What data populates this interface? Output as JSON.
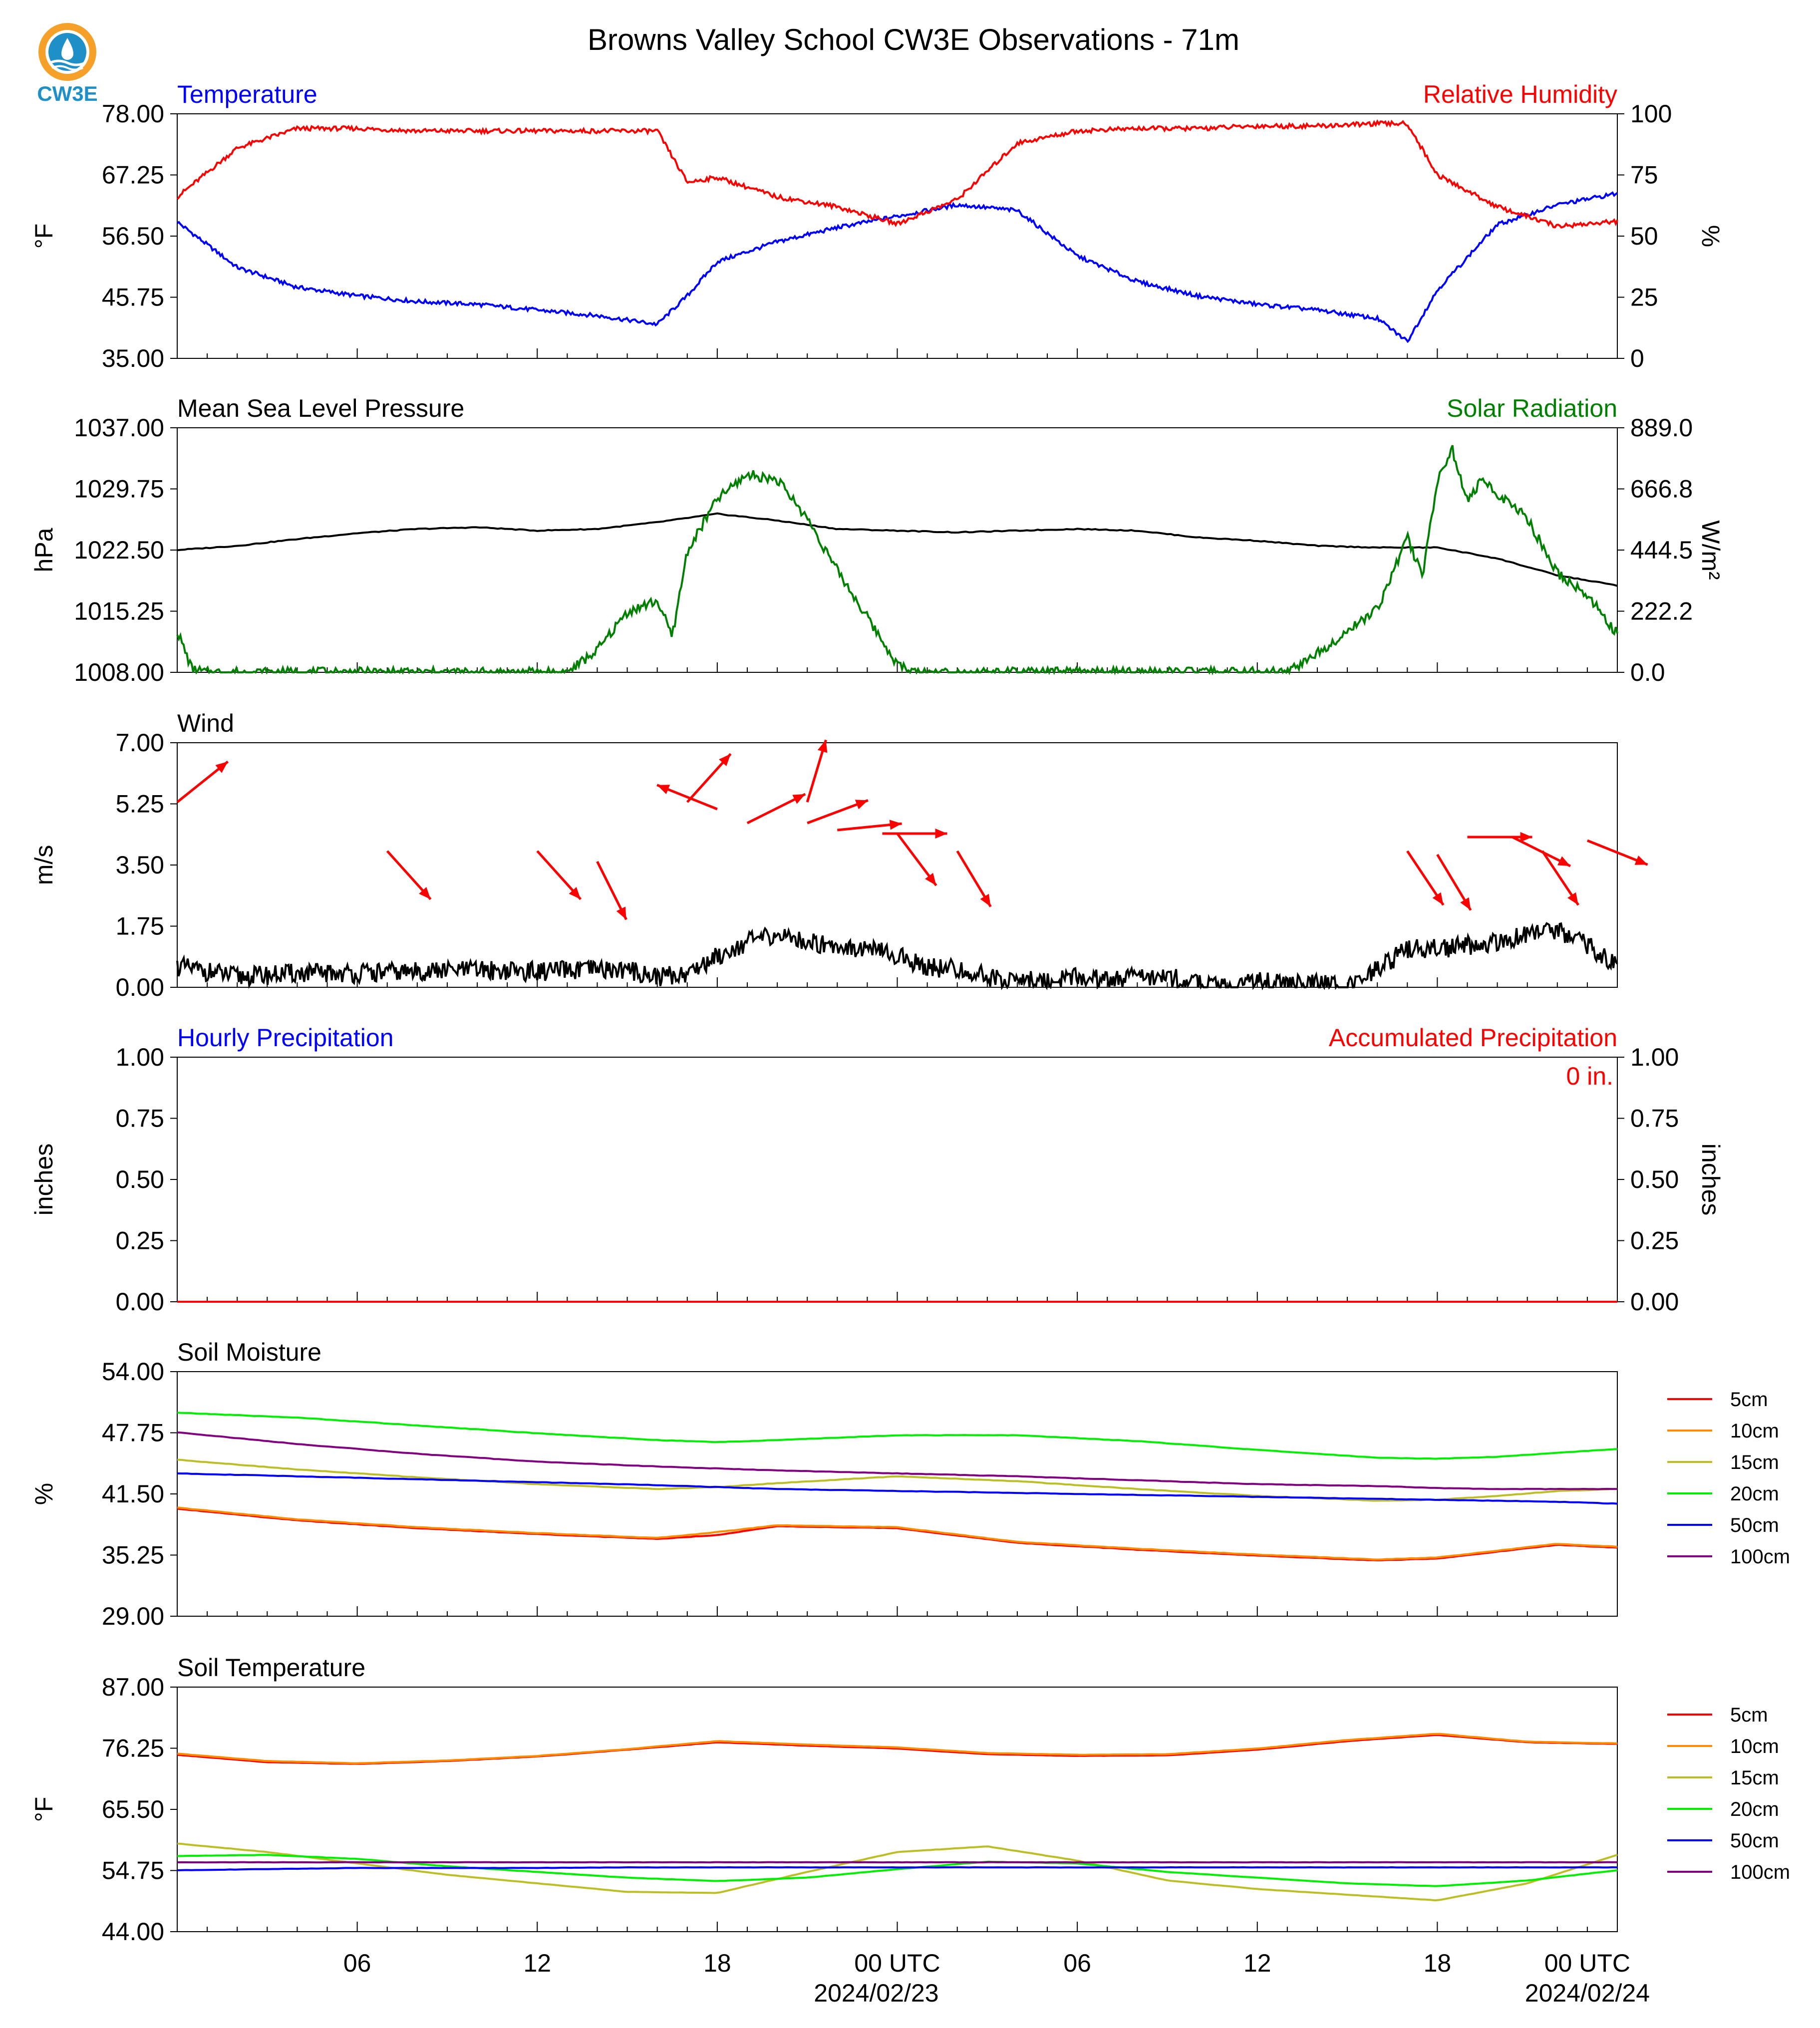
{
  "title": "Browns Valley School CW3E Observations - 71m",
  "logo_text": "CW3E",
  "x_ticks": [
    "06",
    "12",
    "18",
    "00 UTC",
    "06",
    "12",
    "18",
    "00 UTC"
  ],
  "x_dates": [
    "2024/02/23",
    "2024/02/24"
  ],
  "colors": {
    "temp": "#0000ff",
    "rh": "#ff0000",
    "pressure": "#000000",
    "solar": "#008000",
    "wind_arrow": "#ff0000",
    "wind": "#000000"
  },
  "chart_data": [
    {
      "type": "line",
      "title_left": "Temperature",
      "title_right": "Relative Humidity",
      "ylabel_left": "°F",
      "ylabel_right": "%",
      "y_ticks_left": [
        "78.00",
        "67.25",
        "56.50",
        "45.75",
        "35.00"
      ],
      "y_ticks_right": [
        "100",
        "75",
        "50",
        "25",
        "0"
      ],
      "ylim_left": [
        35,
        78
      ],
      "ylim_right": [
        0,
        100
      ],
      "x_hours": [
        0,
        2,
        4,
        6,
        8,
        10,
        12,
        14,
        16,
        17,
        18,
        20,
        22,
        24,
        26,
        28,
        30,
        32,
        34,
        36,
        38,
        40,
        41,
        42,
        44,
        46,
        48
      ],
      "series": [
        {
          "name": "Temperature",
          "axis": "left",
          "color": "#0000ff",
          "values": [
            59,
            51,
            47.5,
            46,
            45,
            44.5,
            43.5,
            42.5,
            41,
            46,
            52,
            55.5,
            58,
            60,
            62,
            61,
            53,
            48.5,
            46,
            44.5,
            43.5,
            42,
            38,
            47,
            58.5,
            62,
            64
          ]
        },
        {
          "name": "Relative Humidity",
          "axis": "right",
          "color": "#ff0000",
          "values": [
            66,
            86,
            94,
            94,
            93,
            93,
            93,
            93,
            93,
            72,
            74,
            66,
            62,
            55,
            65,
            88,
            93,
            94,
            94,
            95,
            95,
            96,
            96,
            75,
            62,
            54,
            56
          ]
        }
      ]
    },
    {
      "type": "line",
      "title_left": "Mean Sea Level Pressure",
      "title_right": "Solar Radiation",
      "ylabel_left": "hPa",
      "ylabel_right": "W/m²",
      "y_ticks_left": [
        "1037.00",
        "1029.75",
        "1022.50",
        "1015.25",
        "1008.00"
      ],
      "y_ticks_right": [
        "889.0",
        "666.8",
        "444.5",
        "222.2",
        "0.0"
      ],
      "ylim_left": [
        1008,
        1037
      ],
      "ylim_right": [
        0,
        889
      ],
      "series": [
        {
          "name": "Mean Sea Level Pressure",
          "axis": "left",
          "color": "#000000",
          "x": [
            0,
            2,
            4,
            6,
            8,
            10,
            12,
            14,
            16,
            18,
            20,
            22,
            24,
            26,
            28,
            30,
            32,
            34,
            36,
            38,
            40,
            42,
            44,
            46,
            48
          ],
          "values": [
            1022.5,
            1023.0,
            1023.8,
            1024.5,
            1025.0,
            1025.2,
            1024.8,
            1025.0,
            1025.8,
            1026.8,
            1026.0,
            1025.0,
            1024.8,
            1024.6,
            1024.8,
            1025.0,
            1024.8,
            1024.0,
            1023.6,
            1023.0,
            1022.8,
            1022.8,
            1021.5,
            1019.5,
            1018.3
          ]
        },
        {
          "name": "Solar Radiation",
          "axis": "right",
          "color": "#008000",
          "x": [
            0,
            0.5,
            1,
            13,
            14,
            15,
            16,
            16.5,
            17,
            18,
            19,
            20,
            21,
            22,
            23,
            24,
            24.5,
            37,
            38,
            39,
            40,
            41,
            41.5,
            42,
            42.5,
            43,
            43.5,
            44,
            45,
            46,
            47,
            48
          ],
          "values": [
            150,
            10,
            0,
            0,
            80,
            220,
            260,
            130,
            440,
            630,
            720,
            700,
            560,
            370,
            200,
            30,
            0,
            0,
            70,
            150,
            230,
            490,
            350,
            700,
            810,
            620,
            700,
            650,
            560,
            360,
            280,
            140
          ]
        }
      ]
    },
    {
      "type": "line",
      "title_left": "Wind",
      "ylabel_left": "m/s",
      "y_ticks_left": [
        "7.00",
        "5.25",
        "3.50",
        "1.75",
        "0.00"
      ],
      "ylim_left": [
        0,
        7
      ],
      "series": [
        {
          "name": "Wind",
          "axis": "left",
          "color": "#000000",
          "x": [
            0,
            2,
            4,
            6,
            8,
            10,
            12,
            14,
            15,
            16,
            17,
            18,
            19,
            20,
            21,
            22,
            23,
            24,
            25,
            26,
            27,
            28,
            29,
            30,
            31,
            32,
            33,
            34,
            35,
            36,
            37,
            38,
            39,
            40,
            41,
            42,
            43,
            44,
            45,
            46,
            47,
            48
          ],
          "values": [
            0.6,
            0.3,
            0.4,
            0.4,
            0.45,
            0.5,
            0.45,
            0.5,
            0.5,
            0.3,
            0.4,
            0.9,
            1.3,
            1.5,
            1.3,
            1.2,
            1.1,
            0.9,
            0.6,
            0.5,
            0.3,
            0.2,
            0.2,
            0.3,
            0.2,
            0.3,
            0.3,
            0.1,
            0.0,
            0.2,
            0.1,
            0.1,
            0.0,
            0.5,
            1.1,
            1.1,
            1.2,
            1.3,
            1.5,
            1.6,
            1.2,
            0.6
          ]
        },
        {
          "name": "Wind direction",
          "color": "#ff0000",
          "x": [
            0,
            7,
            12,
            14,
            17,
            18,
            19,
            21,
            21,
            22,
            23.5,
            24,
            26,
            41,
            42,
            43,
            44.5,
            45.5,
            47
          ],
          "values": [
            5.3,
            3.9,
            3.9,
            3.6,
            5.3,
            5.1,
            4.7,
            4.7,
            5.3,
            4.5,
            4.4,
            4.4,
            3.9,
            3.9,
            3.8,
            4.3,
            4.3,
            3.9,
            4.2
          ]
        }
      ]
    },
    {
      "type": "line",
      "title_left": "Hourly Precipitation",
      "title_right": "Accumulated Precipitation",
      "ylabel_left": "inches",
      "ylabel_right": "inches",
      "y_ticks_left": [
        "1.00",
        "0.75",
        "0.50",
        "0.25",
        "0.00"
      ],
      "y_ticks_right": [
        "1.00",
        "0.75",
        "0.50",
        "0.25",
        "0.00"
      ],
      "ylim_left": [
        0,
        1
      ],
      "annotation": "0 in.",
      "series": [
        {
          "name": "Hourly Precipitation",
          "axis": "left",
          "color": "#0000ff",
          "x": [
            0,
            48
          ],
          "values": [
            0,
            0
          ]
        },
        {
          "name": "Accumulated Precipitation",
          "axis": "right",
          "color": "#ff0000",
          "x": [
            0,
            48
          ],
          "values": [
            0,
            0
          ]
        }
      ]
    },
    {
      "type": "line",
      "title_left": "Soil Moisture",
      "ylabel_left": "%",
      "y_ticks_left": [
        "54.00",
        "47.75",
        "41.50",
        "35.25",
        "29.00"
      ],
      "ylim_left": [
        29,
        54
      ],
      "legend": "right",
      "x": [
        0,
        4,
        8,
        12,
        16,
        18,
        20,
        24,
        28,
        32,
        36,
        40,
        42,
        44,
        46,
        48
      ],
      "series": [
        {
          "name": "5cm",
          "color": "#ff0000",
          "values": [
            40.0,
            38.8,
            38.0,
            37.4,
            36.9,
            37.3,
            38.2,
            38.0,
            36.5,
            35.8,
            35.2,
            34.7,
            34.9,
            35.6,
            36.3,
            36.0
          ]
        },
        {
          "name": "10cm",
          "color": "#ff8c00",
          "values": [
            40.1,
            38.9,
            38.1,
            37.5,
            37.0,
            37.6,
            38.3,
            38.1,
            36.6,
            35.9,
            35.3,
            34.8,
            35.0,
            35.7,
            36.4,
            36.1
          ]
        },
        {
          "name": "15cm",
          "color": "#bdbd28",
          "values": [
            45.0,
            44.0,
            43.2,
            42.5,
            42.0,
            42.2,
            42.6,
            43.3,
            42.8,
            42.0,
            41.3,
            40.8,
            40.9,
            41.3,
            41.8,
            42.0
          ]
        },
        {
          "name": "20cm",
          "color": "#00ee00",
          "values": [
            49.8,
            49.3,
            48.5,
            47.7,
            47.0,
            46.8,
            47.0,
            47.5,
            47.5,
            46.9,
            46.0,
            45.2,
            45.1,
            45.3,
            45.7,
            46.1
          ]
        },
        {
          "name": "50cm",
          "color": "#0000ff",
          "values": [
            43.6,
            43.3,
            43.0,
            42.7,
            42.4,
            42.2,
            42.0,
            41.8,
            41.6,
            41.4,
            41.2,
            41.0,
            40.9,
            40.8,
            40.7,
            40.5
          ]
        },
        {
          "name": "100cm",
          "color": "#800080",
          "values": [
            47.8,
            46.6,
            45.6,
            44.8,
            44.3,
            44.1,
            43.9,
            43.6,
            43.3,
            42.9,
            42.5,
            42.3,
            42.1,
            42.0,
            42.0,
            42.0
          ]
        }
      ]
    },
    {
      "type": "line",
      "title_left": "Soil Temperature",
      "ylabel_left": "°F",
      "y_ticks_left": [
        "87.00",
        "76.25",
        "65.50",
        "54.75",
        "44.00"
      ],
      "ylim_left": [
        44,
        87
      ],
      "legend": "right",
      "x": [
        0,
        3,
        6,
        9,
        12,
        15,
        18,
        21,
        24,
        27,
        30,
        33,
        36,
        39,
        42,
        45,
        48
      ],
      "series": [
        {
          "name": "5cm",
          "color": "#ff0000",
          "values": [
            75.1,
            73.8,
            73.5,
            74.0,
            74.8,
            76.0,
            77.3,
            76.7,
            76.2,
            75.2,
            74.9,
            75.0,
            76.0,
            77.5,
            78.6,
            77.3,
            77.0
          ]
        },
        {
          "name": "10cm",
          "color": "#ff8c00",
          "values": [
            75.3,
            74.0,
            73.6,
            74.1,
            74.9,
            76.1,
            77.5,
            76.9,
            76.4,
            75.4,
            75.1,
            75.2,
            76.2,
            77.7,
            78.8,
            77.4,
            77.1
          ]
        },
        {
          "name": "15cm",
          "color": "#bdbd28",
          "values": [
            59.5,
            58.0,
            56.0,
            54.0,
            52.5,
            51.0,
            50.8,
            54.5,
            58.0,
            59.0,
            56.5,
            53.0,
            51.5,
            50.5,
            49.5,
            52.5,
            57.5
          ]
        },
        {
          "name": "20cm",
          "color": "#00ee00",
          "values": [
            57.3,
            57.5,
            56.8,
            55.5,
            54.5,
            53.5,
            52.9,
            53.5,
            55.0,
            56.3,
            56.0,
            54.5,
            53.5,
            52.5,
            52.0,
            53.0,
            54.8
          ]
        },
        {
          "name": "50cm",
          "color": "#0000ff",
          "values": [
            54.8,
            55.0,
            55.2,
            55.2,
            55.2,
            55.3,
            55.3,
            55.3,
            55.3,
            55.3,
            55.3,
            55.3,
            55.3,
            55.3,
            55.3,
            55.3,
            55.3
          ]
        },
        {
          "name": "100cm",
          "color": "#800080",
          "values": [
            56.2,
            56.2,
            56.2,
            56.2,
            56.2,
            56.2,
            56.2,
            56.2,
            56.2,
            56.2,
            56.2,
            56.2,
            56.2,
            56.2,
            56.2,
            56.2,
            56.2
          ]
        }
      ]
    }
  ]
}
